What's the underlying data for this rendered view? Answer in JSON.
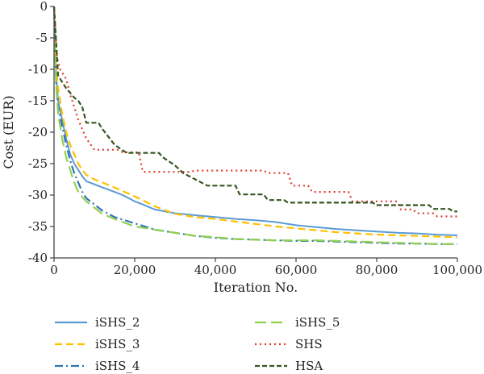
{
  "chart_data": {
    "type": "line",
    "xlabel": "Iteration No.",
    "ylabel": "Cost (EUR)",
    "xlim": [
      0,
      100000
    ],
    "ylim": [
      -40,
      0
    ],
    "x_ticks": [
      0,
      20000,
      40000,
      60000,
      80000,
      100000
    ],
    "x_tick_labels": [
      "0",
      "20,000",
      "40,000",
      "60,000",
      "80,000",
      "100,000"
    ],
    "y_ticks": [
      0,
      -5,
      -10,
      -15,
      -20,
      -25,
      -30,
      -35,
      -40
    ],
    "y_tick_labels": [
      "0",
      "-5",
      "-10",
      "-15",
      "-20",
      "-25",
      "-30",
      "-35",
      "-40"
    ],
    "grid": false,
    "legend_position": "bottom",
    "series": [
      {
        "name": "iSHS_2",
        "color": "#5b9bd5",
        "dash": "solid",
        "step": false,
        "points": [
          [
            0,
            0
          ],
          [
            500,
            -11
          ],
          [
            1000,
            -15
          ],
          [
            2000,
            -18
          ],
          [
            3000,
            -21
          ],
          [
            4000,
            -23.5
          ],
          [
            5000,
            -25
          ],
          [
            6000,
            -26
          ],
          [
            7000,
            -27
          ],
          [
            8000,
            -27.8
          ],
          [
            10000,
            -28.3
          ],
          [
            12000,
            -28.8
          ],
          [
            15000,
            -29.5
          ],
          [
            17000,
            -30
          ],
          [
            20000,
            -31
          ],
          [
            22000,
            -31.5
          ],
          [
            25000,
            -32.3
          ],
          [
            30000,
            -32.9
          ],
          [
            35000,
            -33.2
          ],
          [
            40000,
            -33.5
          ],
          [
            45000,
            -33.8
          ],
          [
            50000,
            -34
          ],
          [
            55000,
            -34.3
          ],
          [
            60000,
            -34.8
          ],
          [
            65000,
            -35.1
          ],
          [
            70000,
            -35.4
          ],
          [
            75000,
            -35.6
          ],
          [
            80000,
            -35.8
          ],
          [
            85000,
            -36
          ],
          [
            90000,
            -36.1
          ],
          [
            95000,
            -36.3
          ],
          [
            100000,
            -36.4
          ]
        ]
      },
      {
        "name": "iSHS_3",
        "color": "#ffc000",
        "dash": "9,5",
        "step": false,
        "points": [
          [
            0,
            0
          ],
          [
            500,
            -10
          ],
          [
            1000,
            -13
          ],
          [
            2000,
            -17
          ],
          [
            3000,
            -20
          ],
          [
            4000,
            -22
          ],
          [
            5000,
            -23.5
          ],
          [
            6000,
            -25
          ],
          [
            7000,
            -26
          ],
          [
            8000,
            -26.8
          ],
          [
            10000,
            -27.5
          ],
          [
            12000,
            -28
          ],
          [
            15000,
            -28.8
          ],
          [
            20000,
            -30.2
          ],
          [
            25000,
            -31.8
          ],
          [
            30000,
            -33
          ],
          [
            35000,
            -33.5
          ],
          [
            40000,
            -33.8
          ],
          [
            45000,
            -34.2
          ],
          [
            50000,
            -34.6
          ],
          [
            55000,
            -35
          ],
          [
            60000,
            -35.3
          ],
          [
            65000,
            -35.6
          ],
          [
            70000,
            -35.9
          ],
          [
            75000,
            -36.1
          ],
          [
            80000,
            -36.3
          ],
          [
            85000,
            -36.4
          ],
          [
            90000,
            -36.5
          ],
          [
            95000,
            -36.6
          ],
          [
            100000,
            -36.7
          ]
        ]
      },
      {
        "name": "iSHS_4",
        "color": "#2e75b6",
        "dash": "10,4,2,4",
        "step": false,
        "points": [
          [
            0,
            0
          ],
          [
            500,
            -12
          ],
          [
            1000,
            -16
          ],
          [
            2000,
            -19
          ],
          [
            3000,
            -22
          ],
          [
            4000,
            -24.5
          ],
          [
            5000,
            -26.5
          ],
          [
            6000,
            -28
          ],
          [
            7000,
            -29.5
          ],
          [
            8000,
            -30.5
          ],
          [
            10000,
            -31.5
          ],
          [
            12000,
            -32.5
          ],
          [
            15000,
            -33.5
          ],
          [
            20000,
            -34.5
          ],
          [
            25000,
            -35.5
          ],
          [
            30000,
            -36
          ],
          [
            35000,
            -36.5
          ],
          [
            40000,
            -36.8
          ],
          [
            45000,
            -37
          ],
          [
            50000,
            -37.1
          ],
          [
            55000,
            -37.2
          ],
          [
            60000,
            -37.3
          ],
          [
            65000,
            -37.3
          ],
          [
            70000,
            -37.4
          ],
          [
            75000,
            -37.5
          ],
          [
            80000,
            -37.6
          ],
          [
            85000,
            -37.7
          ],
          [
            90000,
            -37.7
          ],
          [
            95000,
            -37.8
          ],
          [
            100000,
            -37.8
          ]
        ]
      },
      {
        "name": "iSHS_5",
        "color": "#92d050",
        "dash": "14,6",
        "step": false,
        "points": [
          [
            0,
            0
          ],
          [
            500,
            -12
          ],
          [
            1000,
            -17
          ],
          [
            2000,
            -21
          ],
          [
            3000,
            -24
          ],
          [
            4000,
            -26
          ],
          [
            5000,
            -28
          ],
          [
            6000,
            -29.5
          ],
          [
            7000,
            -30.3
          ],
          [
            8000,
            -31
          ],
          [
            10000,
            -32
          ],
          [
            12000,
            -33
          ],
          [
            15000,
            -33.8
          ],
          [
            20000,
            -35
          ],
          [
            25000,
            -35.5
          ],
          [
            30000,
            -36
          ],
          [
            35000,
            -36.5
          ],
          [
            40000,
            -36.7
          ],
          [
            45000,
            -37
          ],
          [
            50000,
            -37.1
          ],
          [
            55000,
            -37.2
          ],
          [
            60000,
            -37.2
          ],
          [
            65000,
            -37.2
          ],
          [
            70000,
            -37.3
          ],
          [
            75000,
            -37.4
          ],
          [
            80000,
            -37.5
          ],
          [
            85000,
            -37.6
          ],
          [
            90000,
            -37.7
          ],
          [
            95000,
            -37.8
          ],
          [
            100000,
            -37.8
          ]
        ]
      },
      {
        "name": "SHS",
        "color": "#e03c31",
        "dash": "2,4",
        "step": true,
        "points": [
          [
            0,
            0
          ],
          [
            700,
            -8
          ],
          [
            1500,
            -10
          ],
          [
            3000,
            -11.5
          ],
          [
            4000,
            -14
          ],
          [
            6000,
            -18
          ],
          [
            7000,
            -19.5
          ],
          [
            8000,
            -21
          ],
          [
            10000,
            -22.8
          ],
          [
            16000,
            -22.8
          ],
          [
            17000,
            -23.2
          ],
          [
            21000,
            -23.2
          ],
          [
            22000,
            -26.3
          ],
          [
            34000,
            -26.3
          ],
          [
            35000,
            -26.1
          ],
          [
            52000,
            -26.1
          ],
          [
            53000,
            -26.5
          ],
          [
            58000,
            -26.5
          ],
          [
            59000,
            -28.5
          ],
          [
            63000,
            -28.5
          ],
          [
            64000,
            -29.5
          ],
          [
            73000,
            -29.5
          ],
          [
            74000,
            -31
          ],
          [
            85000,
            -31
          ],
          [
            86000,
            -32.3
          ],
          [
            89000,
            -32.3
          ],
          [
            90000,
            -32.9
          ],
          [
            94000,
            -32.9
          ],
          [
            95000,
            -33.4
          ],
          [
            100000,
            -33.4
          ]
        ]
      },
      {
        "name": "HSA",
        "color": "#375623",
        "dash": "6,3",
        "step": true,
        "points": [
          [
            0,
            0
          ],
          [
            1000,
            -11
          ],
          [
            2000,
            -12
          ],
          [
            3000,
            -13
          ],
          [
            5000,
            -14.5
          ],
          [
            6000,
            -15
          ],
          [
            7000,
            -16
          ],
          [
            8000,
            -18.5
          ],
          [
            11000,
            -18.5
          ],
          [
            12000,
            -19.5
          ],
          [
            15000,
            -22
          ],
          [
            18000,
            -23.3
          ],
          [
            26000,
            -23.3
          ],
          [
            27000,
            -24
          ],
          [
            30000,
            -25.3
          ],
          [
            32000,
            -26.5
          ],
          [
            35000,
            -27.5
          ],
          [
            38000,
            -28.5
          ],
          [
            45000,
            -28.5
          ],
          [
            46000,
            -29.9
          ],
          [
            52000,
            -29.9
          ],
          [
            53000,
            -30.8
          ],
          [
            57000,
            -30.8
          ],
          [
            58000,
            -31.2
          ],
          [
            79000,
            -31.2
          ],
          [
            80000,
            -31.6
          ],
          [
            93000,
            -31.6
          ],
          [
            94000,
            -32.2
          ],
          [
            98000,
            -32.2
          ],
          [
            99000,
            -32.6
          ],
          [
            100000,
            -32.6
          ]
        ]
      }
    ],
    "legend": [
      {
        "name": "iSHS_2",
        "color": "#5b9bd5",
        "dash": "solid",
        "column": 0,
        "row": 0
      },
      {
        "name": "iSHS_3",
        "color": "#ffc000",
        "dash": "9,5",
        "column": 0,
        "row": 1
      },
      {
        "name": "iSHS_4",
        "color": "#2e75b6",
        "dash": "10,4,2,4",
        "column": 0,
        "row": 2
      },
      {
        "name": "iSHS_5",
        "color": "#92d050",
        "dash": "14,6",
        "column": 1,
        "row": 0
      },
      {
        "name": "SHS",
        "color": "#e03c31",
        "dash": "2,4",
        "column": 1,
        "row": 1
      },
      {
        "name": "HSA",
        "color": "#375623",
        "dash": "6,3",
        "column": 1,
        "row": 2
      }
    ]
  }
}
